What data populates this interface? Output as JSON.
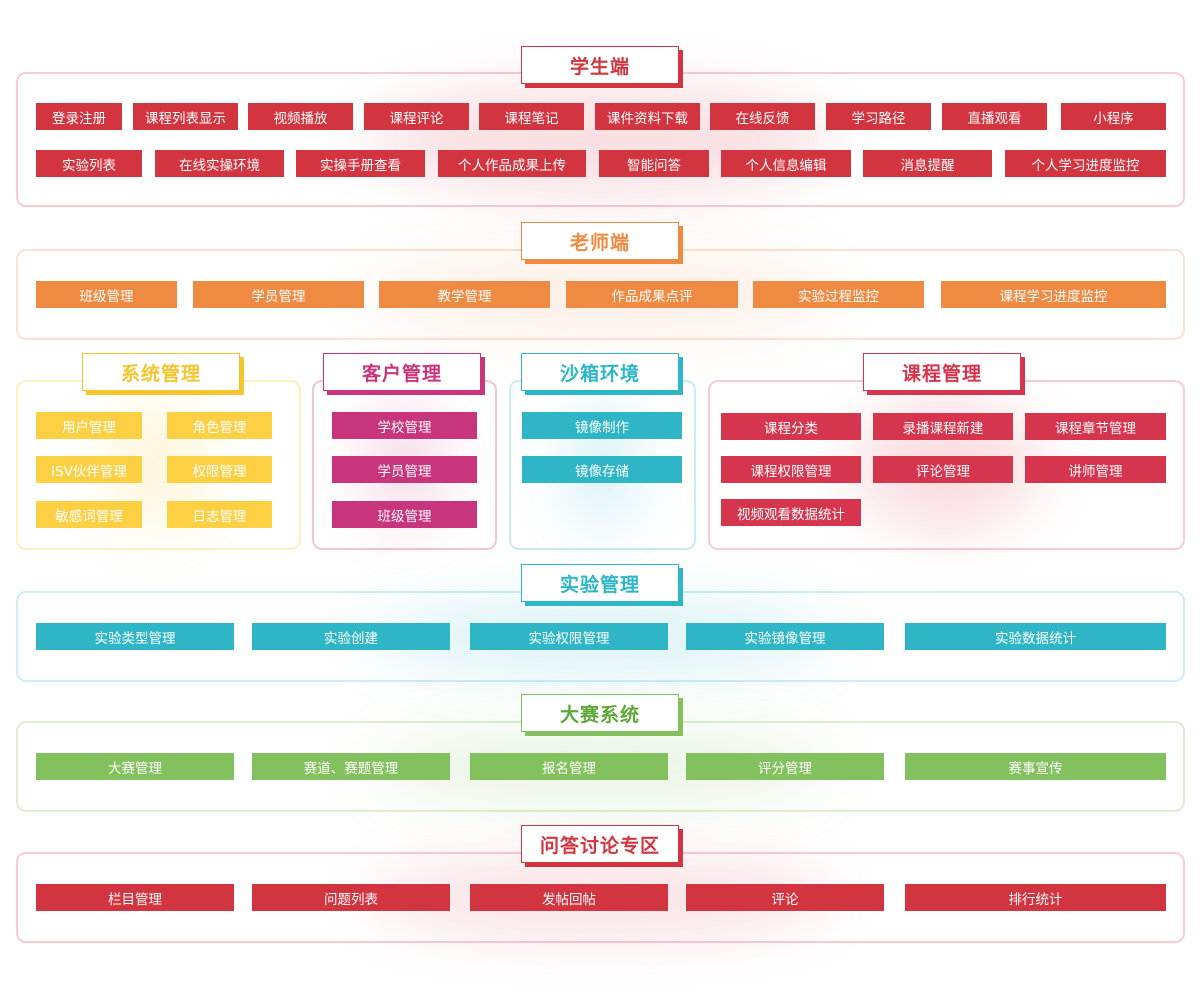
{
  "student": {
    "title": "学生端",
    "items": [
      "登录注册",
      "课程列表显示",
      "视频播放",
      "课程评论",
      "课程笔记",
      "课件资料下载",
      "在线反馈",
      "学习路径",
      "直播观看",
      "小程序",
      "实验列表",
      "在线实操环境",
      "实操手册查看",
      "个人作品成果上传",
      "智能问答",
      "个人信息编辑",
      "消息提醒",
      "个人学习进度监控"
    ]
  },
  "teacher": {
    "title": "老师端",
    "items": [
      "班级管理",
      "学员管理",
      "教学管理",
      "作品成果点评",
      "实验过程监控",
      "课程学习进度监控"
    ]
  },
  "system": {
    "title": "系统管理",
    "items": [
      "用户管理",
      "角色管理",
      "ISV伙伴管理",
      "权限管理",
      "敏感词管理",
      "日志管理"
    ]
  },
  "customer": {
    "title": "客户管理",
    "items": [
      "学校管理",
      "学员管理",
      "班级管理"
    ]
  },
  "sandbox": {
    "title": "沙箱环境",
    "items": [
      "镜像制作",
      "镜像存储"
    ]
  },
  "course": {
    "title": "课程管理",
    "items": [
      "课程分类",
      "录播课程新建",
      "课程章节管理",
      "课程权限管理",
      "评论管理",
      "讲师管理",
      "视频观看数据统计"
    ]
  },
  "experiment": {
    "title": "实验管理",
    "items": [
      "实验类型管理",
      "实验创建",
      "实验权限管理",
      "实验镜像管理",
      "实验数据统计"
    ]
  },
  "contest": {
    "title": "大赛系统",
    "items": [
      "大赛管理",
      "赛道、赛题管理",
      "报名管理",
      "评分管理",
      "赛事宣传"
    ]
  },
  "qa": {
    "title": "问答讨论专区",
    "items": [
      "栏目管理",
      "问题列表",
      "发帖回帖",
      "评论",
      "排行统计"
    ]
  },
  "colors": {
    "red": "#d2353f",
    "orange": "#ef8a43",
    "yellow": "#fdd044",
    "magenta": "#c9357d",
    "teal": "#2eb6c7",
    "green": "#82c15d",
    "crimson": "#d5364e"
  }
}
